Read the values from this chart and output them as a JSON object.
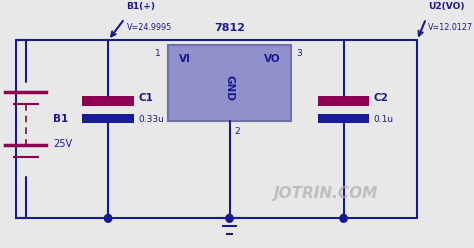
{
  "bg_color": "#e8e8e8",
  "wire_color": "#1a1a8c",
  "wire_lw": 1.5,
  "ic_color": "#9090cc",
  "ic_edge": "#7070aa",
  "ic_label": "7812",
  "ic_vi": "VI",
  "ic_vo": "VO",
  "ic_gnd": "GND",
  "text_color": "#1a1a8c",
  "cap_color_top": "#8b0050",
  "cap_color_bot": "#1a1a9c",
  "battery_color": "#8b0050",
  "probe1_label": "B1(+)",
  "probe1_value": "V=24.9995",
  "probe2_label": "U2(VO)",
  "probe2_value": "V=12.0127",
  "bat_label": "B1",
  "bat_value": "25V",
  "c1_label": "C1",
  "c1_value": "0.33u",
  "c2_label": "C2",
  "c2_value": "0.1u",
  "jotrin_text": "JOTRIN.COM",
  "jotrin_color": "#b0b0b0"
}
